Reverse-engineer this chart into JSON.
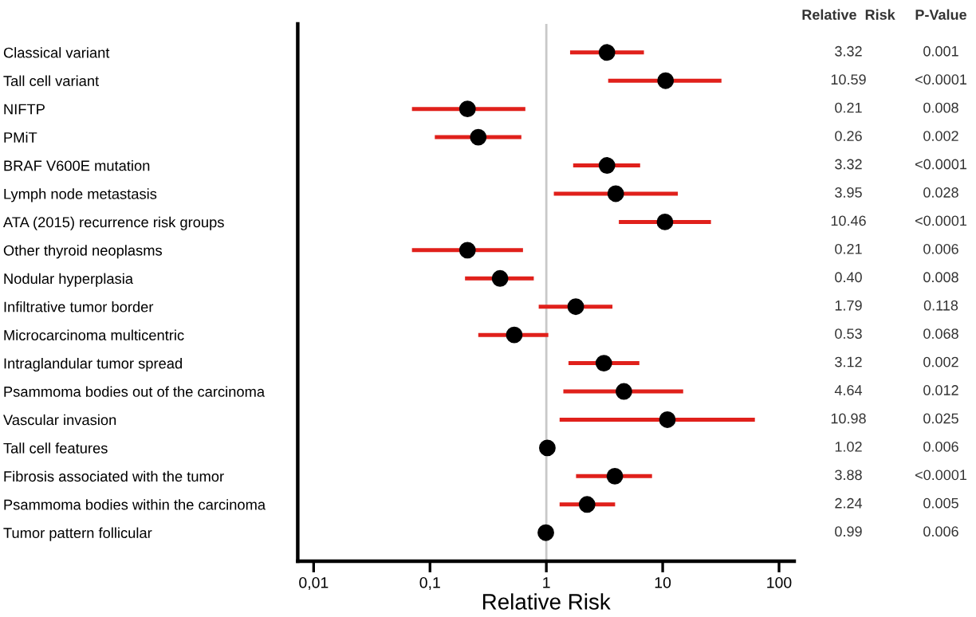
{
  "chart_data": {
    "type": "scatter",
    "orientation": "horizontal",
    "log": "x",
    "xlabel": "Relative Risk",
    "categories": [
      "Classical variant",
      "Tall cell variant",
      "NIFTP",
      "PMiT",
      "BRAF V600E mutation",
      "Lymph node metastasis",
      "ATA (2015) recurrence risk groups",
      "Other thyroid neoplasms",
      "Nodular hyperplasia",
      "Infiltrative tumor border",
      "Microcarcinoma multicentric",
      "Intraglandular tumor spread",
      "Psammoma bodies out of the carcinoma",
      "Vascular invasion",
      "Tall cell features",
      "Fibrosis associated with the tumor",
      "Psammoma bodies within the carcinoma",
      "Tumor pattern follicular"
    ],
    "series": [
      {
        "color": "#e0201b",
        "colors": [
          "#000000",
          "#000000",
          "#000000",
          "#000000",
          "#000000",
          "#000000",
          "#000000",
          "#000000",
          "#000000",
          "#000000",
          "#000000",
          "#000000",
          "#000000",
          "#000000",
          "#000000",
          "#000000",
          "#000000",
          "#000000"
        ],
        "values": [
          3.32,
          10.59,
          0.21,
          0.26,
          3.32,
          3.95,
          10.46,
          0.21,
          0.4,
          1.79,
          0.53,
          3.12,
          4.64,
          10.98,
          1.02,
          3.88,
          2.24,
          0.99
        ],
        "errors": [
          [
            1.6,
            6.9
          ],
          [
            3.4,
            32
          ],
          [
            0.07,
            0.66
          ],
          [
            0.11,
            0.61
          ],
          [
            1.7,
            6.4
          ],
          [
            1.16,
            13.5
          ],
          [
            4.2,
            26
          ],
          [
            0.07,
            0.63
          ],
          [
            0.2,
            0.78
          ],
          [
            0.86,
            3.7
          ],
          [
            0.26,
            1.04
          ],
          [
            1.55,
            6.3
          ],
          [
            1.4,
            15
          ],
          [
            1.3,
            62
          ],
          null,
          [
            1.8,
            8.1
          ],
          [
            1.3,
            3.9
          ],
          null
        ],
        "value_labels": [
          "3.32",
          "10.59",
          "0.21",
          "0.26",
          "3.32",
          "3.95",
          "10.46",
          "0.21",
          "0.40",
          "1.79",
          "0.53",
          "3.12",
          "4.64",
          "10.98",
          "1.02",
          "3.88",
          "2.24",
          "0.99"
        ]
      }
    ],
    "xlim": [
      0.0073,
      135
    ],
    "xticks": [
      {
        "value": 0.01,
        "label": "0,01"
      },
      {
        "value": 0.1,
        "label": "0,1"
      },
      {
        "value": 1,
        "label": "1"
      },
      {
        "value": 10,
        "label": "10"
      },
      {
        "value": 100,
        "label": "100"
      }
    ],
    "ref_lines": [
      {
        "axis": "x",
        "value": 1,
        "color": "#c8c8c8"
      }
    ],
    "marker": "circle",
    "grid": false,
    "legend": false,
    "annotations": [
      "Relative  Risk",
      "P-Value",
      "0.001",
      "<0.0001",
      "0.008",
      "0.002",
      "<0.0001",
      "0.028",
      "<0.0001",
      "0.006",
      "0.008",
      "0.118",
      "0.068",
      "0.002",
      "0.012",
      "0.025",
      "0.006",
      "<0.0001",
      "0.005",
      "0.006"
    ]
  }
}
